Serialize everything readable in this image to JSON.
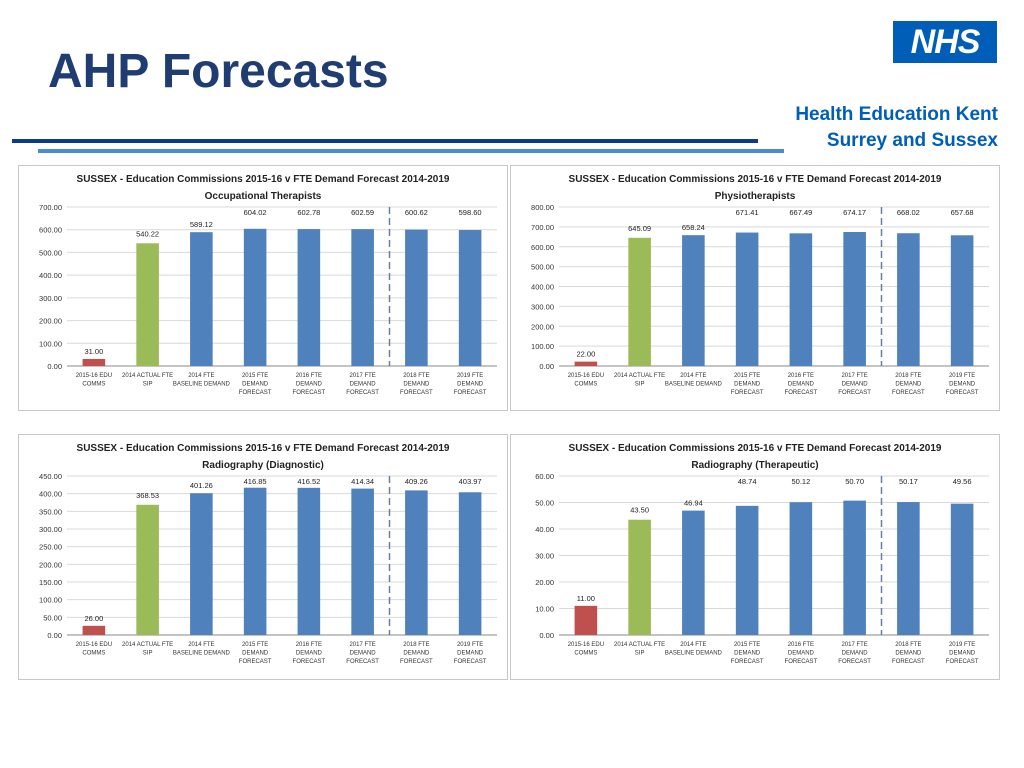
{
  "page": {
    "title": "AHP Forecasts",
    "nhs_logo": "NHS",
    "org_line1": "Health Education Kent",
    "org_line2": "Surrey and Sussex",
    "colors": {
      "title": "#1f3c73",
      "nhs_blue": "#005eb8",
      "edu": "#c0504d",
      "actual": "#9bbb59",
      "forecast": "#4f81bd"
    }
  },
  "chart_data": [
    {
      "type": "bar",
      "title": "SUSSEX - Education Commissions 2015-16 v FTE Demand Forecast 2014-2019",
      "subtitle": "Occupational Therapists",
      "categories": [
        [
          "2015-16 EDU",
          "COMMS"
        ],
        [
          "2014 ACTUAL FTE",
          "SIP"
        ],
        [
          "2014 FTE",
          "BASELINE DEMAND"
        ],
        [
          "2015 FTE",
          "DEMAND",
          "FORECAST"
        ],
        [
          "2016 FTE",
          "DEMAND",
          "FORECAST"
        ],
        [
          "2017 FTE",
          "DEMAND",
          "FORECAST"
        ],
        [
          "2018 FTE",
          "DEMAND",
          "FORECAST"
        ],
        [
          "2019 FTE",
          "DEMAND",
          "FORECAST"
        ]
      ],
      "values": [
        31.0,
        540.22,
        589.12,
        604.02,
        602.78,
        602.59,
        600.62,
        598.6
      ],
      "labels": [
        "31.00",
        "540.22",
        "589.12",
        "604.02",
        "602.78",
        "602.59",
        "600.62",
        "598.60"
      ],
      "ylim": [
        0,
        700
      ],
      "yticks": [
        "0.00",
        "100.00",
        "200.00",
        "300.00",
        "400.00",
        "500.00",
        "600.00",
        "700.00"
      ],
      "divider_after": 5
    },
    {
      "type": "bar",
      "title": "SUSSEX - Education Commissions 2015-16 v FTE Demand Forecast 2014-2019",
      "subtitle": "Physiotherapists",
      "categories": [
        [
          "2015-16 EDU",
          "COMMS"
        ],
        [
          "2014 ACTUAL FTE",
          "SIP"
        ],
        [
          "2014 FTE",
          "BASELINE DEMAND"
        ],
        [
          "2015 FTE",
          "DEMAND",
          "FORECAST"
        ],
        [
          "2016 FTE",
          "DEMAND",
          "FORECAST"
        ],
        [
          "2017 FTE",
          "DEMAND",
          "FORECAST"
        ],
        [
          "2018 FTE",
          "DEMAND",
          "FORECAST"
        ],
        [
          "2019 FTE",
          "DEMAND",
          "FORECAST"
        ]
      ],
      "values": [
        22.0,
        645.09,
        658.24,
        671.41,
        667.49,
        674.17,
        668.02,
        657.68
      ],
      "labels": [
        "22.00",
        "645.09",
        "658.24",
        "671.41",
        "667.49",
        "674.17",
        "668.02",
        "657.68"
      ],
      "ylim": [
        0,
        800
      ],
      "yticks": [
        "0.00",
        "100.00",
        "200.00",
        "300.00",
        "400.00",
        "500.00",
        "600.00",
        "700.00",
        "800.00"
      ],
      "divider_after": 5
    },
    {
      "type": "bar",
      "title": "SUSSEX - Education Commissions 2015-16 v FTE Demand Forecast 2014-2019",
      "subtitle": "Radiography (Diagnostic)",
      "categories": [
        [
          "2015-16 EDU",
          "COMMS"
        ],
        [
          "2014 ACTUAL FTE",
          "SIP"
        ],
        [
          "2014 FTE",
          "BASELINE DEMAND"
        ],
        [
          "2015 FTE",
          "DEMAND",
          "FORECAST"
        ],
        [
          "2016 FTE",
          "DEMAND",
          "FORECAST"
        ],
        [
          "2017 FTE",
          "DEMAND",
          "FORECAST"
        ],
        [
          "2018 FTE",
          "DEMAND",
          "FORECAST"
        ],
        [
          "2019 FTE",
          "DEMAND",
          "FORECAST"
        ]
      ],
      "values": [
        26.0,
        368.53,
        401.26,
        416.85,
        416.52,
        414.34,
        409.26,
        403.97
      ],
      "labels": [
        "26.00",
        "368.53",
        "401.26",
        "416.85",
        "416.52",
        "414.34",
        "409.26",
        "403.97"
      ],
      "ylim": [
        0,
        450
      ],
      "yticks": [
        "0.00",
        "50.00",
        "100.00",
        "150.00",
        "200.00",
        "250.00",
        "300.00",
        "350.00",
        "400.00",
        "450.00"
      ],
      "divider_after": 5
    },
    {
      "type": "bar",
      "title": "SUSSEX - Education Commissions 2015-16 v FTE Demand Forecast 2014-2019",
      "subtitle": "Radiography (Therapeutic)",
      "categories": [
        [
          "2015-16 EDU",
          "COMMS"
        ],
        [
          "2014 ACTUAL FTE",
          "SIP"
        ],
        [
          "2014 FTE",
          "BASELINE DEMAND"
        ],
        [
          "2015 FTE",
          "DEMAND",
          "FORECAST"
        ],
        [
          "2016 FTE",
          "DEMAND",
          "FORECAST"
        ],
        [
          "2017 FTE",
          "DEMAND",
          "FORECAST"
        ],
        [
          "2018 FTE",
          "DEMAND",
          "FORECAST"
        ],
        [
          "2019 FTE",
          "DEMAND",
          "FORECAST"
        ]
      ],
      "values": [
        11.0,
        43.5,
        46.94,
        48.74,
        50.12,
        50.7,
        50.17,
        49.56
      ],
      "labels": [
        "11.00",
        "43.50",
        "46.94",
        "48.74",
        "50.12",
        "50.70",
        "50.17",
        "49.56"
      ],
      "ylim": [
        0,
        60
      ],
      "yticks": [
        "0.00",
        "10.00",
        "20.00",
        "30.00",
        "40.00",
        "50.00",
        "60.00"
      ],
      "divider_after": 5
    }
  ]
}
